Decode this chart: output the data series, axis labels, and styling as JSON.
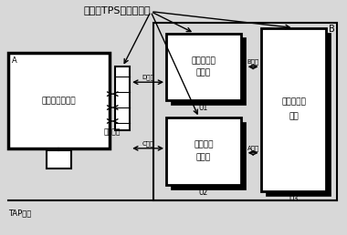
{
  "title": "扩展的TPS测试覆盖率",
  "tap_label": "TAP信号",
  "box_A_label": "边界扫描扩展卡",
  "box_A_tag": "A",
  "box_U1_line1": "非边界扫描",
  "box_U1_line2": "芯片藏",
  "box_U1_tag": "U1",
  "box_U2_line1": "边界扫描",
  "box_U2_line2": "芯片藏",
  "box_U2_tag": "U2",
  "box_U3_line1": "混合扫描芯",
  "box_U3_line2": "片藏",
  "box_U3_tag": "U3",
  "big_box_B_tag": "B",
  "net_A_label": "A网络",
  "net_B_label": "B网络",
  "net_C_label": "C网络",
  "net_D_label": "D网络",
  "test_channel_label": "测试通道",
  "bg_color": "#d8d8d8",
  "box_fc": "white",
  "line_color": "black"
}
